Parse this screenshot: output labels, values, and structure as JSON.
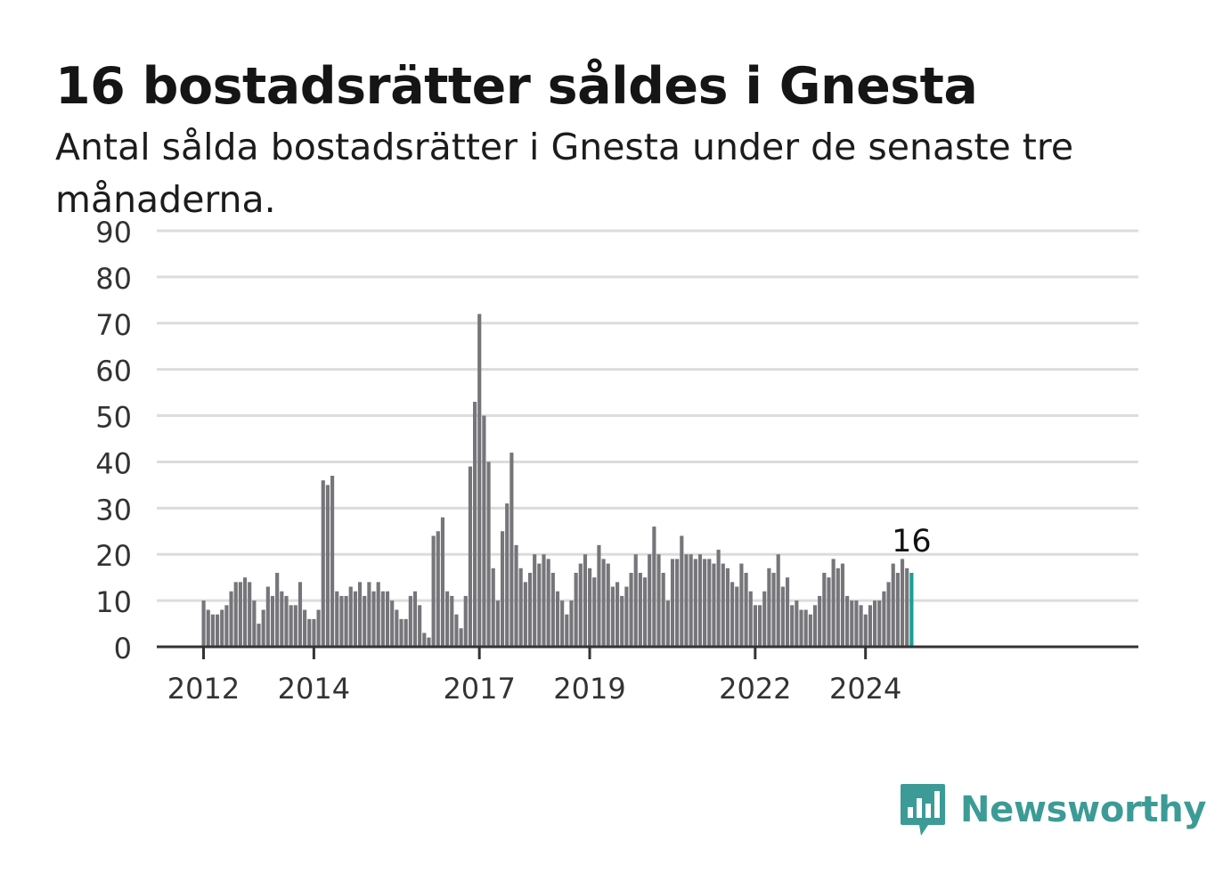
{
  "header": {
    "title": "16 bostadsrätter såldes i Gnesta",
    "subtitle": "Antal sålda bostadsrätter i Gnesta under de senaste tre månaderna."
  },
  "brand": {
    "name": "Newsworthy",
    "logo_icon": "bar-chart-speech-bubble-icon"
  },
  "colors": {
    "bar": "#76767a",
    "highlight": "#1a9e93",
    "grid": "#dcdcdc",
    "axis": "#333333",
    "brand": "#3c9b96"
  },
  "chart_data": {
    "type": "bar",
    "title": "16 bostadsrätter såldes i Gnesta",
    "subtitle": "Antal sålda bostadsrätter i Gnesta under de senaste tre månaderna.",
    "x_start": "2012-01",
    "x_end": "2024-12",
    "ylim": [
      0,
      90
    ],
    "yticks": [
      0,
      10,
      20,
      30,
      40,
      50,
      60,
      70,
      80,
      90
    ],
    "xticks": [
      {
        "label": "2012",
        "date": "2012-01"
      },
      {
        "label": "2014",
        "date": "2014-01"
      },
      {
        "label": "2017",
        "date": "2017-01"
      },
      {
        "label": "2019",
        "date": "2019-01"
      },
      {
        "label": "2022",
        "date": "2022-01"
      },
      {
        "label": "2024",
        "date": "2024-01"
      }
    ],
    "grid": true,
    "highlight_last": true,
    "last_value_label": "16",
    "values": [
      10,
      8,
      7,
      7,
      8,
      9,
      12,
      14,
      14,
      15,
      14,
      10,
      5,
      8,
      13,
      11,
      16,
      12,
      11,
      9,
      9,
      14,
      8,
      6,
      6,
      8,
      36,
      35,
      37,
      12,
      11,
      11,
      13,
      12,
      14,
      11,
      14,
      12,
      14,
      12,
      12,
      10,
      8,
      6,
      6,
      11,
      12,
      9,
      3,
      2,
      24,
      25,
      28,
      12,
      11,
      7,
      4,
      11,
      39,
      53,
      72,
      50,
      40,
      17,
      10,
      25,
      31,
      42,
      22,
      17,
      14,
      16,
      20,
      18,
      20,
      19,
      16,
      12,
      10,
      7,
      10,
      16,
      18,
      20,
      17,
      15,
      22,
      19,
      18,
      13,
      14,
      11,
      13,
      16,
      20,
      16,
      15,
      20,
      26,
      20,
      16,
      10,
      19,
      19,
      24,
      20,
      20,
      19,
      20,
      19,
      19,
      18,
      21,
      18,
      17,
      14,
      13,
      18,
      16,
      12,
      9,
      9,
      12,
      17,
      16,
      20,
      13,
      15,
      9,
      10,
      8,
      8,
      7,
      9,
      11,
      16,
      15,
      19,
      17,
      18,
      11,
      10,
      10,
      9,
      7,
      9,
      10,
      10,
      12,
      14,
      18,
      16,
      19,
      17,
      16
    ]
  }
}
